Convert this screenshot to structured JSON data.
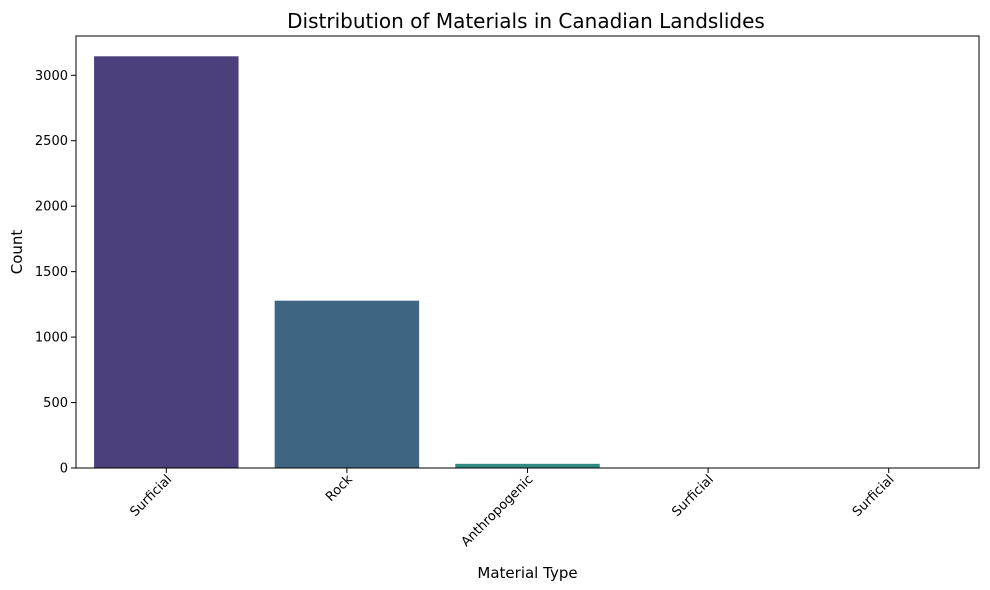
{
  "chart_data": {
    "type": "bar",
    "title": "Distribution of Materials in Canadian Landslides",
    "xlabel": "Material Type",
    "ylabel": "Count",
    "categories": [
      "Surficial",
      "Rock",
      "Anthropogenic",
      "Surficial",
      "Surficial"
    ],
    "values": [
      3145,
      1278,
      32,
      2,
      1
    ],
    "ylim": [
      0,
      3300
    ],
    "yticks": [
      0,
      500,
      1000,
      1500,
      2000,
      2500,
      3000
    ],
    "colors": [
      "#482878",
      "#3e4989",
      "#26828e",
      "#35b779",
      "#b5de2b"
    ],
    "bar_colors": [
      "#4b3f7c",
      "#3e6683",
      "#2f8b81",
      "#3fa877",
      "#8ac955"
    ],
    "xtick_rotation_deg": 45,
    "grid": false,
    "legend": "none"
  }
}
